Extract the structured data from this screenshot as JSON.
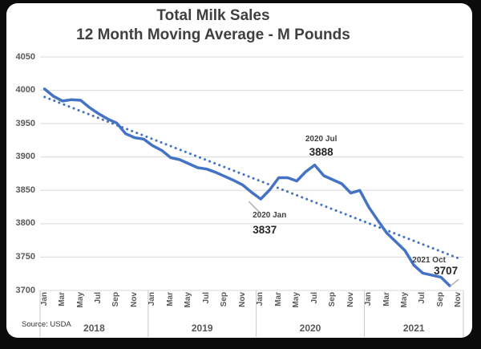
{
  "header": {
    "title": "Total Milk Sales",
    "subtitle": "12 Month Moving Average - M Pounds"
  },
  "source_note": "Source: USDA",
  "colors": {
    "frame": "#0b0b0b",
    "panel": "#ffffff",
    "line": "#4472C4",
    "trendline": "#4472C4",
    "grid": "#D9D9D9",
    "divider": "#C9C9C9",
    "axis_text": "#595959",
    "title_text": "#3f3f3f",
    "leader": "#A6A6A6"
  },
  "chart_data": {
    "type": "line",
    "title": "Total Milk Sales",
    "subtitle": "12 Month Moving Average - M Pounds",
    "xlabel": "",
    "ylabel": "",
    "ylim": [
      3700,
      4050
    ],
    "y_ticks": [
      4050,
      4000,
      3950,
      3900,
      3850,
      3800,
      3750,
      3700
    ],
    "grid": "horizontal",
    "legend": false,
    "month_tick_labels": [
      "Jan",
      "Mar",
      "May",
      "Jul",
      "Sep",
      "Nov"
    ],
    "series_name": "Total milk sales, 12-month moving average (M pounds)",
    "years": [
      {
        "label": "2018",
        "values": [
          4002,
          3991,
          3984,
          3986,
          3985,
          3974,
          3965,
          3957,
          3951,
          3935,
          3929,
          3927
        ]
      },
      {
        "label": "2019",
        "values": [
          3917,
          3910,
          3899,
          3896,
          3890,
          3884,
          3882,
          3877,
          3871,
          3865,
          3858,
          3847
        ]
      },
      {
        "label": "2020",
        "values": [
          3837,
          3851,
          3869,
          3869,
          3864,
          3878,
          3888,
          3872,
          3866,
          3860,
          3846,
          3850
        ]
      },
      {
        "label": "2021",
        "values": [
          3825,
          3805,
          3786,
          3773,
          3760,
          3738,
          3726,
          3723,
          3720,
          3707
        ]
      }
    ],
    "trendline": {
      "type": "linear",
      "style": "dotted",
      "start_value": 3990,
      "end_value": 3748
    },
    "annotations": [
      {
        "label": "2020 Jan",
        "value": "3837",
        "month_index": 24,
        "placement": "below-right",
        "leader": true
      },
      {
        "label": "2020 Jul",
        "value": "3888",
        "month_index": 30,
        "placement": "above",
        "leader": false
      },
      {
        "label": "2021 Oct",
        "value": "3707",
        "month_index": 45,
        "placement": "upper-right",
        "leader": true
      }
    ]
  }
}
